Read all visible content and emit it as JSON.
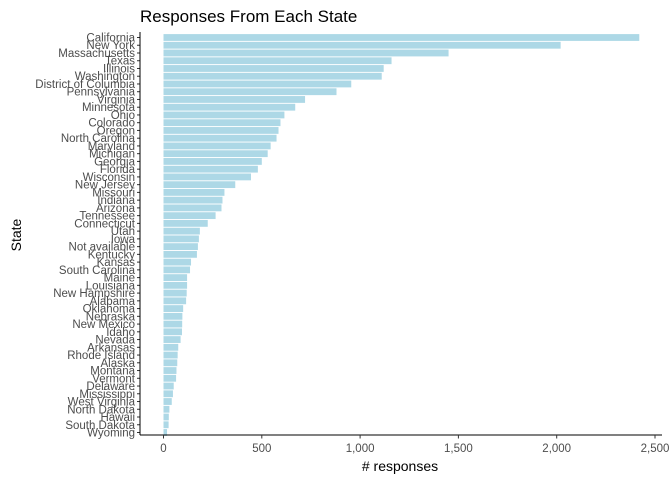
{
  "chart_data": {
    "type": "bar",
    "orientation": "horizontal",
    "title": "Responses From Each State",
    "xlabel": "# responses",
    "ylabel": "State",
    "xlim": [
      0,
      2500
    ],
    "x_ticks": [
      0,
      500,
      1000,
      1500,
      2000,
      2500
    ],
    "x_tick_labels": [
      "0",
      "500",
      "1,000",
      "1,500",
      "2,000",
      "2,500"
    ],
    "bar_color": "#add8e6",
    "grid": false,
    "legend": "none",
    "categories": [
      "California",
      "New York",
      "Massachusetts",
      "Texas",
      "Illinois",
      "Washington",
      "District of Columbia",
      "Pennsylvania",
      "Virginia",
      "Minnesota",
      "Ohio",
      "Colorado",
      "Oregon",
      "North Carolina",
      "Maryland",
      "Michigan",
      "Georgia",
      "Florida",
      "Wisconsin",
      "New Jersey",
      "Missouri",
      "Indiana",
      "Arizona",
      "Tennessee",
      "Connecticut",
      "Utah",
      "Iowa",
      "Not available",
      "Kentucky",
      "Kansas",
      "South Carolina",
      "Maine",
      "Louisiana",
      "New Hampshire",
      "Alabama",
      "Oklahoma",
      "Nebraska",
      "New Mexico",
      "Idaho",
      "Nevada",
      "Arkansas",
      "Rhode Island",
      "Alaska",
      "Montana",
      "Vermont",
      "Delaware",
      "Mississippi",
      "West Virginia",
      "North Dakota",
      "Hawaii",
      "South Dakota",
      "Wyoming"
    ],
    "values": [
      2420,
      2020,
      1450,
      1160,
      1120,
      1110,
      955,
      880,
      720,
      670,
      615,
      595,
      585,
      575,
      545,
      530,
      500,
      480,
      445,
      365,
      310,
      300,
      295,
      265,
      225,
      185,
      180,
      175,
      170,
      140,
      135,
      120,
      120,
      118,
      115,
      100,
      96,
      95,
      94,
      87,
      75,
      72,
      70,
      66,
      64,
      52,
      48,
      42,
      30,
      27,
      26,
      18
    ]
  }
}
